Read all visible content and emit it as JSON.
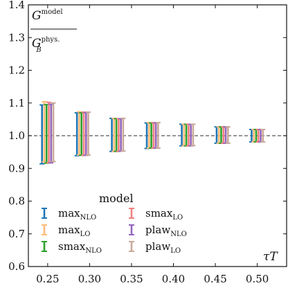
{
  "chart_data": {
    "type": "errorbar",
    "ylabel": {
      "numerator": "G",
      "numerator_sup": "model",
      "denominator": "G",
      "denominator_sub": "B",
      "denominator_sup": "phys."
    },
    "xlabel": "τT",
    "xlim": [
      0.227,
      0.535
    ],
    "ylim": [
      0.6,
      1.4
    ],
    "xticks": [
      0.25,
      0.3,
      0.35,
      0.4,
      0.45,
      0.5
    ],
    "xtick_labels": [
      "0.25",
      "0.30",
      "0.35",
      "0.40",
      "0.45",
      "0.50"
    ],
    "yticks": [
      0.6,
      0.7,
      0.8,
      0.9,
      1.0,
      1.1,
      1.2,
      1.3,
      1.4
    ],
    "ytick_labels": [
      "0.6",
      "0.7",
      "0.8",
      "0.9",
      "1.0",
      "1.1",
      "1.2",
      "1.3",
      "1.4"
    ],
    "reference_line": {
      "y": 1.0,
      "style": "dashed",
      "color": "#555555"
    },
    "x": [
      0.25,
      0.2917,
      0.3333,
      0.375,
      0.4167,
      0.4583,
      0.5
    ],
    "series_offset": 0.0027,
    "series": [
      {
        "name": "max",
        "name_sub": "NLO",
        "color": "#1f77b4",
        "lower": [
          0.914,
          0.939,
          0.952,
          0.961,
          0.969,
          0.977,
          0.981
        ],
        "upper": [
          1.094,
          1.07,
          1.053,
          1.039,
          1.035,
          1.027,
          1.019
        ]
      },
      {
        "name": "max",
        "name_sub": "LO",
        "color": "#ffbb78",
        "lower": [
          0.92,
          0.941,
          0.952,
          0.962,
          0.969,
          0.977,
          0.981
        ],
        "upper": [
          1.104,
          1.073,
          1.053,
          1.04,
          1.035,
          1.027,
          1.019
        ]
      },
      {
        "name": "smax",
        "name_sub": "NLO",
        "color": "#2ca02c",
        "lower": [
          0.916,
          0.94,
          0.952,
          0.962,
          0.969,
          0.977,
          0.981
        ],
        "upper": [
          1.095,
          1.07,
          1.052,
          1.039,
          1.035,
          1.027,
          1.019
        ]
      },
      {
        "name": "smax",
        "name_sub": "LO",
        "color": "#f08080",
        "lower": [
          0.917,
          0.94,
          0.952,
          0.962,
          0.969,
          0.977,
          0.981
        ],
        "upper": [
          1.102,
          1.072,
          1.052,
          1.04,
          1.035,
          1.027,
          1.019
        ]
      },
      {
        "name": "plaw",
        "name_sub": "NLO",
        "color": "#9467bd",
        "lower": [
          0.917,
          0.94,
          0.953,
          0.962,
          0.969,
          0.977,
          0.981
        ],
        "upper": [
          1.096,
          1.071,
          1.052,
          1.039,
          1.035,
          1.027,
          1.019
        ]
      },
      {
        "name": "plaw",
        "name_sub": "LO",
        "color": "#c9a99a",
        "lower": [
          0.921,
          0.941,
          0.953,
          0.962,
          0.97,
          0.977,
          0.981
        ],
        "upper": [
          1.1,
          1.072,
          1.053,
          1.04,
          1.035,
          1.027,
          1.019
        ]
      }
    ],
    "legend": {
      "title": "model",
      "placement": "lower-left",
      "columns": 2
    }
  }
}
